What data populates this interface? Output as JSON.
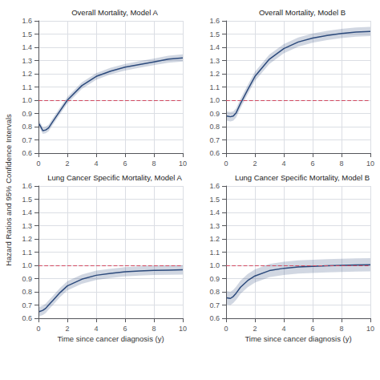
{
  "chart_data": [
    {
      "type": "line",
      "title": "Overall Mortality, Model A",
      "ylabel": "Hazard Ratios and 95% Confidence Intervals",
      "xlim": [
        0,
        10
      ],
      "xticks": [
        0,
        2,
        4,
        6,
        8,
        10
      ],
      "ylim": [
        0.6,
        1.6
      ],
      "yticks": [
        0.6,
        0.7,
        0.8,
        0.9,
        {
          "value": 1.0,
          "label": "1.0"
        },
        1.1,
        1.2,
        1.3,
        1.4,
        1.5,
        1.6
      ],
      "grid": true,
      "reference_line": 1.0,
      "x": [
        0.05,
        0.3,
        0.5,
        0.7,
        1.0,
        1.5,
        2.0,
        3.0,
        4.0,
        5.0,
        6.0,
        7.0,
        8.0,
        9.0,
        10.0
      ],
      "series": [
        {
          "color": "#2c4a7c",
          "values": [
            0.82,
            0.77,
            0.775,
            0.79,
            0.84,
            0.92,
            1.0,
            1.11,
            1.18,
            1.22,
            1.25,
            1.27,
            1.29,
            1.31,
            1.32
          ],
          "lower": [
            0.795,
            0.745,
            0.75,
            0.765,
            0.815,
            0.895,
            0.975,
            1.085,
            1.155,
            1.195,
            1.225,
            1.245,
            1.265,
            1.283,
            1.293
          ],
          "upper": [
            0.845,
            0.795,
            0.8,
            0.815,
            0.865,
            0.945,
            1.025,
            1.135,
            1.205,
            1.245,
            1.275,
            1.295,
            1.315,
            1.337,
            1.347
          ]
        }
      ]
    },
    {
      "type": "line",
      "title": "Overall Mortality, Model B",
      "xlim": [
        0,
        10
      ],
      "xticks": [
        0,
        2,
        4,
        6,
        8,
        10
      ],
      "ylim": [
        0.6,
        1.6
      ],
      "yticks": [
        0.6,
        0.7,
        0.8,
        0.9,
        {
          "value": 1.0,
          "label": "1.0"
        },
        1.1,
        1.2,
        1.3,
        1.4,
        1.5,
        1.6
      ],
      "grid": true,
      "reference_line": 1.0,
      "x": [
        0.05,
        0.3,
        0.5,
        0.7,
        1.0,
        1.5,
        2.0,
        3.0,
        4.0,
        5.0,
        6.0,
        7.0,
        8.0,
        9.0,
        10.0
      ],
      "series": [
        {
          "color": "#2c4a7c",
          "values": [
            0.88,
            0.875,
            0.88,
            0.905,
            0.975,
            1.08,
            1.18,
            1.31,
            1.39,
            1.44,
            1.47,
            1.49,
            1.505,
            1.515,
            1.52
          ],
          "lower": [
            0.845,
            0.84,
            0.845,
            0.87,
            0.94,
            1.045,
            1.145,
            1.275,
            1.355,
            1.405,
            1.435,
            1.455,
            1.47,
            1.48,
            1.485
          ],
          "upper": [
            0.915,
            0.91,
            0.915,
            0.94,
            1.01,
            1.115,
            1.215,
            1.345,
            1.425,
            1.475,
            1.505,
            1.525,
            1.54,
            1.55,
            1.555
          ]
        }
      ]
    },
    {
      "type": "line",
      "title": "Lung Cancer Specific Mortality, Model A",
      "xlabel": "Time since cancer diagnosis (y)",
      "xlim": [
        0,
        10
      ],
      "xticks": [
        0,
        2,
        4,
        6,
        8,
        10
      ],
      "ylim": [
        0.6,
        1.6
      ],
      "yticks": [
        0.6,
        0.7,
        0.8,
        0.9,
        {
          "value": 1.0,
          "label": "1.0"
        },
        1.1,
        1.2,
        1.3,
        1.4,
        1.5,
        1.6
      ],
      "grid": true,
      "reference_line": 1.0,
      "x": [
        0.05,
        0.3,
        0.5,
        0.7,
        1.0,
        1.5,
        2.0,
        3.0,
        4.0,
        5.0,
        6.0,
        7.0,
        8.0,
        9.0,
        10.0
      ],
      "series": [
        {
          "color": "#2c4a7c",
          "values": [
            0.65,
            0.66,
            0.675,
            0.7,
            0.735,
            0.795,
            0.845,
            0.895,
            0.925,
            0.94,
            0.952,
            0.958,
            0.962,
            0.964,
            0.966
          ],
          "lower": [
            0.615,
            0.625,
            0.64,
            0.665,
            0.7,
            0.76,
            0.81,
            0.86,
            0.89,
            0.905,
            0.917,
            0.923,
            0.927,
            0.929,
            0.931
          ],
          "upper": [
            0.685,
            0.695,
            0.71,
            0.735,
            0.77,
            0.83,
            0.88,
            0.93,
            0.96,
            0.975,
            0.987,
            0.993,
            0.997,
            0.999,
            1.001
          ]
        }
      ]
    },
    {
      "type": "line",
      "title": "Lung Cancer Specific Mortality, Model B",
      "xlabel": "Time since cancer diagnosis (y)",
      "xlim": [
        0,
        10
      ],
      "xticks": [
        0,
        2,
        4,
        6,
        8,
        10
      ],
      "ylim": [
        0.6,
        1.6
      ],
      "yticks": [
        0.6,
        0.7,
        0.8,
        0.9,
        {
          "value": 1.0,
          "label": "1.0"
        },
        1.1,
        1.2,
        1.3,
        1.4,
        1.5,
        1.6
      ],
      "grid": true,
      "reference_line": 1.0,
      "x": [
        0.05,
        0.3,
        0.5,
        0.7,
        1.0,
        1.5,
        2.0,
        3.0,
        4.0,
        5.0,
        6.0,
        7.0,
        8.0,
        9.0,
        10.0
      ],
      "series": [
        {
          "color": "#2c4a7c",
          "values": [
            0.755,
            0.75,
            0.765,
            0.79,
            0.835,
            0.885,
            0.92,
            0.96,
            0.978,
            0.988,
            0.993,
            0.997,
            1.0,
            1.003,
            1.005
          ],
          "lower": [
            0.705,
            0.7,
            0.715,
            0.74,
            0.785,
            0.835,
            0.87,
            0.91,
            0.928,
            0.938,
            0.943,
            0.947,
            0.95,
            0.953,
            0.955
          ],
          "upper": [
            0.805,
            0.8,
            0.815,
            0.84,
            0.885,
            0.935,
            0.97,
            1.01,
            1.028,
            1.038,
            1.043,
            1.047,
            1.05,
            1.053,
            1.055
          ]
        }
      ]
    }
  ]
}
